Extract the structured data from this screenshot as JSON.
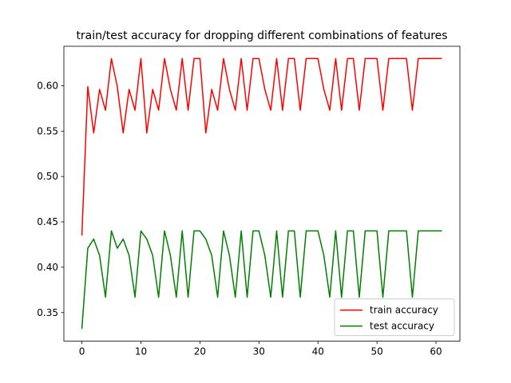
{
  "chart_data": {
    "type": "line",
    "title": "train/test accuracy for dropping different combinations of features",
    "xlabel": "",
    "ylabel": "",
    "xlim": [
      -3.05,
      64.05
    ],
    "ylim": [
      0.3185,
      0.6435
    ],
    "xticks": [
      0,
      10,
      20,
      30,
      40,
      50,
      60
    ],
    "yticks": [
      0.35,
      0.4,
      0.45,
      0.5,
      0.55,
      0.6
    ],
    "ytick_labels": [
      "0.35",
      "0.40",
      "0.45",
      "0.50",
      "0.55",
      "0.60"
    ],
    "grid": false,
    "legend_position": "lower-right",
    "x": [
      0,
      1,
      2,
      3,
      4,
      5,
      6,
      7,
      8,
      9,
      10,
      11,
      12,
      13,
      14,
      15,
      16,
      17,
      18,
      19,
      20,
      21,
      22,
      23,
      24,
      25,
      26,
      27,
      28,
      29,
      30,
      31,
      32,
      33,
      34,
      35,
      36,
      37,
      38,
      39,
      40,
      41,
      42,
      43,
      44,
      45,
      46,
      47,
      48,
      49,
      50,
      51,
      52,
      53,
      54,
      55,
      56,
      57,
      58,
      59,
      60,
      61
    ],
    "series": [
      {
        "name": "train accuracy",
        "color": "#ff0000",
        "values": [
          0.435,
          0.599,
          0.548,
          0.596,
          0.573,
          0.63,
          0.599,
          0.548,
          0.596,
          0.573,
          0.63,
          0.548,
          0.596,
          0.573,
          0.63,
          0.596,
          0.573,
          0.63,
          0.573,
          0.63,
          0.63,
          0.548,
          0.596,
          0.573,
          0.63,
          0.596,
          0.573,
          0.63,
          0.573,
          0.63,
          0.63,
          0.596,
          0.573,
          0.63,
          0.573,
          0.63,
          0.63,
          0.573,
          0.63,
          0.63,
          0.63,
          0.596,
          0.573,
          0.63,
          0.573,
          0.63,
          0.63,
          0.573,
          0.63,
          0.63,
          0.63,
          0.573,
          0.63,
          0.63,
          0.63,
          0.63,
          0.573,
          0.63,
          0.63,
          0.63,
          0.63,
          0.63
        ]
      },
      {
        "name": "test accuracy",
        "color": "#008000",
        "values": [
          0.332,
          0.421,
          0.431,
          0.413,
          0.367,
          0.44,
          0.421,
          0.431,
          0.413,
          0.367,
          0.44,
          0.431,
          0.413,
          0.367,
          0.44,
          0.413,
          0.367,
          0.44,
          0.367,
          0.44,
          0.44,
          0.431,
          0.413,
          0.367,
          0.44,
          0.413,
          0.367,
          0.44,
          0.367,
          0.44,
          0.44,
          0.413,
          0.367,
          0.44,
          0.367,
          0.44,
          0.44,
          0.367,
          0.44,
          0.44,
          0.44,
          0.413,
          0.367,
          0.44,
          0.367,
          0.44,
          0.44,
          0.367,
          0.44,
          0.44,
          0.44,
          0.367,
          0.44,
          0.44,
          0.44,
          0.44,
          0.367,
          0.44,
          0.44,
          0.44,
          0.44,
          0.44
        ]
      }
    ]
  }
}
